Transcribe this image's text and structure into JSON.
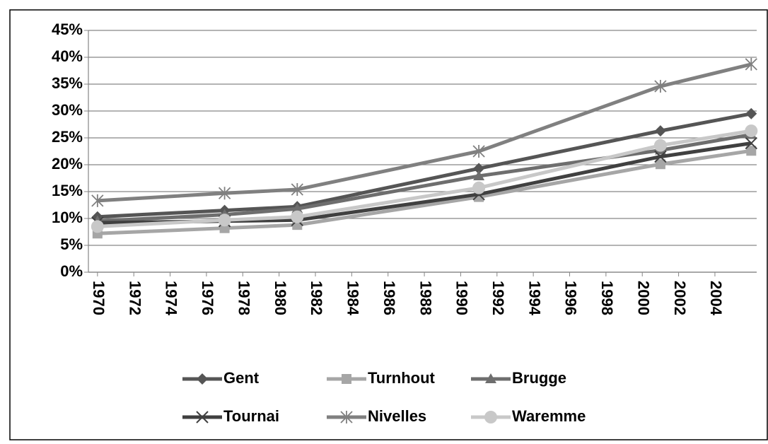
{
  "chart_data": {
    "type": "line",
    "x": [
      1970,
      1977,
      1981,
      1991,
      2001,
      2006
    ],
    "xlim": [
      1969.5,
      2006.3
    ],
    "xticks": [
      1970,
      1972,
      1974,
      1976,
      1978,
      1980,
      1982,
      1984,
      1986,
      1988,
      1990,
      1992,
      1994,
      1996,
      1998,
      2000,
      2002,
      2004
    ],
    "ylim": [
      0,
      45
    ],
    "yticks": [
      {
        "value": 0,
        "label": "0%"
      },
      {
        "value": 5,
        "label": "5%"
      },
      {
        "value": 10,
        "label": "10%"
      },
      {
        "value": 15,
        "label": "15%"
      },
      {
        "value": 20,
        "label": "20%"
      },
      {
        "value": 25,
        "label": "25%"
      },
      {
        "value": 30,
        "label": "30%"
      },
      {
        "value": 35,
        "label": "35%"
      },
      {
        "value": 40,
        "label": "40%"
      },
      {
        "value": 45,
        "label": "45%"
      }
    ],
    "grid": true,
    "legend": "bottom",
    "series": [
      {
        "name": "Gent",
        "color": "#555555",
        "marker": "diamond",
        "values": [
          10.3,
          11.5,
          12.2,
          19.3,
          26.3,
          29.5
        ]
      },
      {
        "name": "Turnhout",
        "color": "#a6a6a6",
        "marker": "square",
        "values": [
          7.2,
          8.2,
          8.8,
          14.0,
          20.1,
          22.6
        ]
      },
      {
        "name": "Brugge",
        "color": "#6e6e6e",
        "marker": "triangle",
        "values": [
          9.5,
          10.7,
          11.8,
          17.9,
          22.7,
          25.6
        ]
      },
      {
        "name": "Tournai",
        "color": "#404040",
        "marker": "x",
        "values": [
          9.2,
          9.5,
          9.7,
          14.5,
          21.5,
          24.0
        ]
      },
      {
        "name": "Nivelles",
        "color": "#808080",
        "marker": "star",
        "values": [
          13.3,
          14.7,
          15.4,
          22.5,
          34.6,
          38.7
        ]
      },
      {
        "name": "Waremme",
        "color": "#c8c8c8",
        "marker": "circle",
        "values": [
          8.5,
          9.7,
          10.3,
          15.7,
          23.6,
          26.3
        ]
      }
    ]
  }
}
